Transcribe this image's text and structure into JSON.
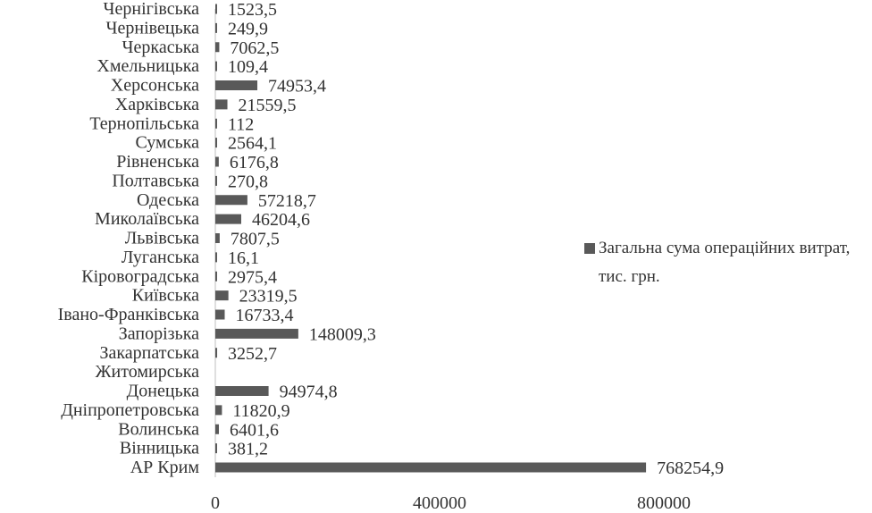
{
  "chart_data": {
    "type": "bar",
    "orientation": "horizontal",
    "categories": [
      "АР Крим",
      "Вінницька",
      "Волинська",
      "Дніпропетровська",
      "Донецька",
      "Житомирська",
      "Закарпатська",
      "Запорізька",
      "Івано-Франківська",
      "Київська",
      "Кіровоградська",
      "Луганська",
      "Львівська",
      "Миколаївська",
      "Одеська",
      "Полтавська",
      "Рівненська",
      "Сумська",
      "Тернопільська",
      "Харківська",
      "Херсонська",
      "Хмельницька",
      "Черкаська",
      "Чернівецька",
      "Чернігівська"
    ],
    "values": [
      768254.9,
      381.2,
      6401.6,
      11820.9,
      94974.8,
      null,
      3252.7,
      148009.3,
      16733.4,
      23319.5,
      2975.4,
      16.1,
      7807.5,
      46204.6,
      57218.7,
      270.8,
      6176.8,
      2564.1,
      112,
      21559.5,
      74953.4,
      109.4,
      7062.5,
      249.9,
      1523.5
    ],
    "value_labels": [
      "768254,9",
      "381,2",
      "6401,6",
      "11820,9",
      "94974,8",
      "",
      "3252,7",
      "148009,3",
      "16733,4",
      "23319,5",
      "2975,4",
      "16,1",
      "7807,5",
      "46204,6",
      "57218,7",
      "270,8",
      "6176,8",
      "2564,1",
      "112",
      "21559,5",
      "74953,4",
      "109,4",
      "7062,5",
      "249,9",
      "1523,5"
    ],
    "series_name": "Загальна сума операційних витрат, тис. грн.",
    "xlim": [
      0,
      1000000
    ],
    "xticks": [
      0,
      400000,
      800000
    ],
    "xtick_labels": [
      "0",
      "400000",
      "800000"
    ],
    "grid": false,
    "legend_position": "right",
    "bar_color": "#595959"
  }
}
